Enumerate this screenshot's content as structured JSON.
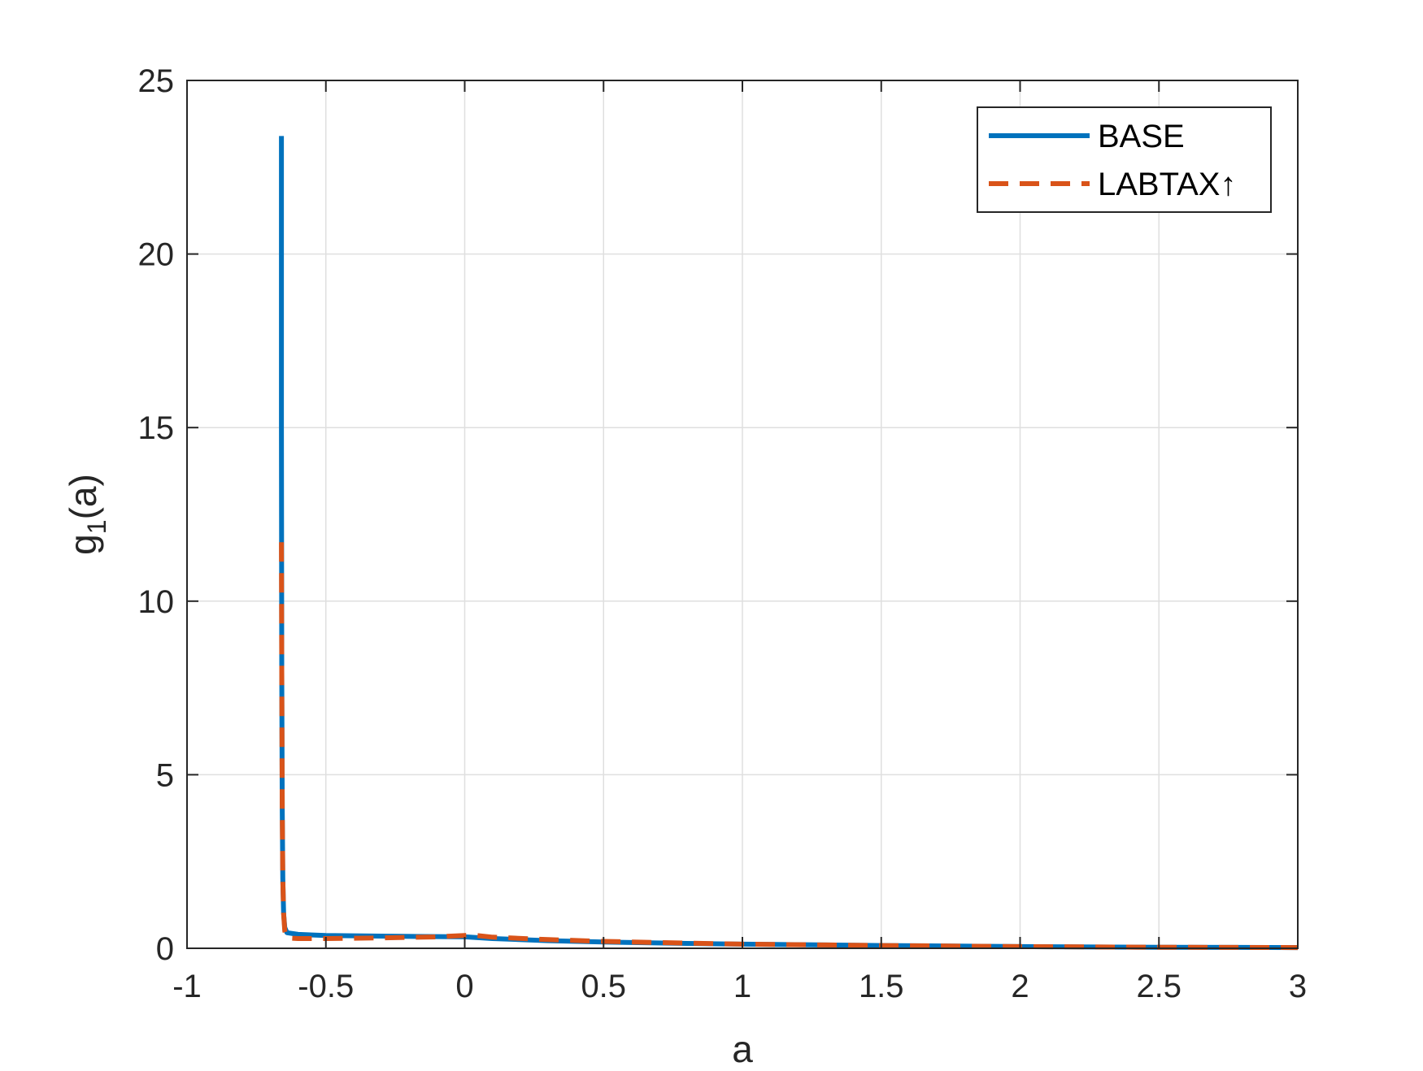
{
  "chart_data": {
    "type": "line",
    "title": "",
    "xlabel": "a",
    "ylabel": {
      "base": "g",
      "subscript": "1",
      "suffix": "(a)"
    },
    "xlim": [
      -1,
      3
    ],
    "ylim": [
      0,
      25
    ],
    "xticks": [
      -1,
      -0.5,
      0,
      0.5,
      1,
      1.5,
      2,
      2.5,
      3
    ],
    "xtick_labels": [
      "-1",
      "-0.5",
      "0",
      "0.5",
      "1",
      "1.5",
      "2",
      "2.5",
      "3"
    ],
    "yticks": [
      0,
      5,
      10,
      15,
      20,
      25
    ],
    "ytick_labels": [
      "0",
      "5",
      "10",
      "15",
      "20",
      "25"
    ],
    "grid": true,
    "legend_position": "top-right",
    "series": [
      {
        "name": "BASE",
        "color": "#0072BD",
        "style": "solid",
        "x": [
          -0.66,
          -0.66,
          -0.659,
          -0.657,
          -0.655,
          -0.652,
          -0.648,
          -0.64,
          -0.6,
          -0.5,
          -0.3,
          0.0,
          0.1,
          0.3,
          0.5,
          0.8,
          1.0,
          1.5,
          2.0,
          2.5,
          3.0
        ],
        "y": [
          23.4,
          15.0,
          8.0,
          4.0,
          2.0,
          1.0,
          0.6,
          0.45,
          0.4,
          0.37,
          0.35,
          0.33,
          0.28,
          0.22,
          0.18,
          0.14,
          0.12,
          0.08,
          0.05,
          0.03,
          0.02
        ]
      },
      {
        "name": "LABTAX↑",
        "color": "#D95319",
        "style": "dashed",
        "x": [
          -0.66,
          -0.659,
          -0.657,
          -0.655,
          -0.652,
          -0.648,
          -0.64,
          -0.6,
          -0.5,
          -0.3,
          -0.1,
          0.0,
          0.03,
          0.1,
          0.3,
          0.5,
          0.8,
          1.0,
          1.5,
          2.0,
          2.5,
          3.0
        ],
        "y": [
          11.7,
          8.0,
          4.0,
          2.0,
          1.0,
          0.5,
          0.3,
          0.28,
          0.28,
          0.3,
          0.33,
          0.37,
          0.38,
          0.32,
          0.25,
          0.2,
          0.15,
          0.12,
          0.08,
          0.05,
          0.03,
          0.02
        ]
      }
    ]
  }
}
